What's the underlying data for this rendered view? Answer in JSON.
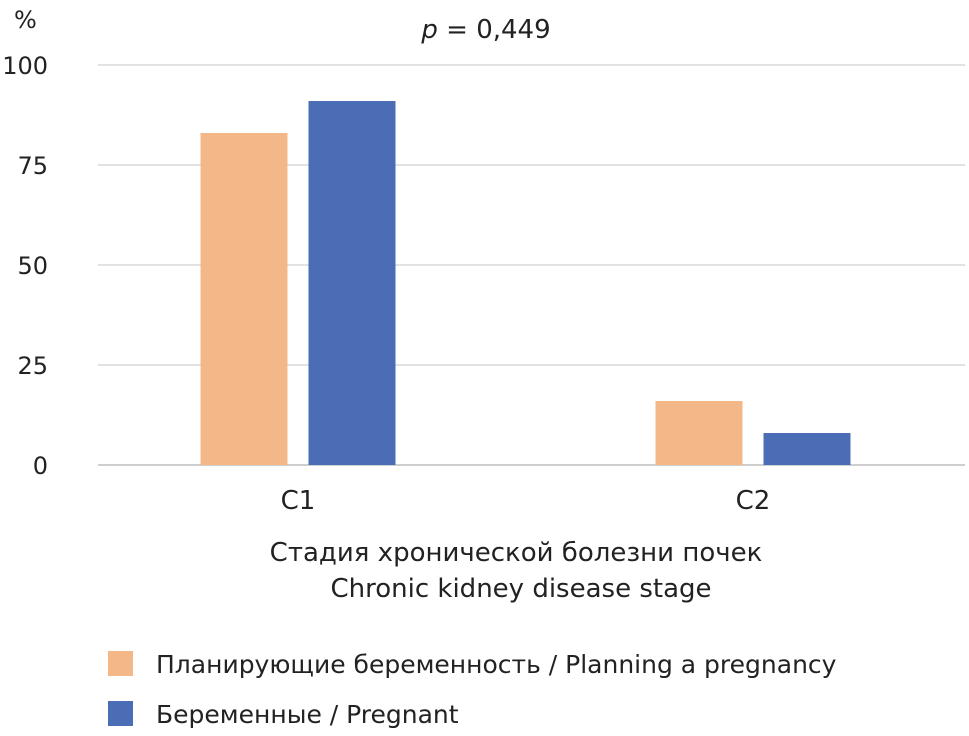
{
  "chart_data": {
    "type": "bar",
    "title": "p = 0,449",
    "title_p": "p",
    "title_rest": " = 0,449",
    "ylabel": "%",
    "xlabel_lines": [
      "Стадия хронической болезни почек",
      "Chronic kidney disease stage"
    ],
    "categories": [
      "C1",
      "C2"
    ],
    "ylim": [
      0,
      100
    ],
    "yticks": [
      0,
      25,
      50,
      75,
      100
    ],
    "grid": true,
    "legend_position": "bottom-left",
    "series": [
      {
        "name": "Планирующие беременность / Planning a pregnancy",
        "color": "#F4B787",
        "values": [
          83,
          16
        ]
      },
      {
        "name": "Беременные / Pregnant",
        "color": "#4A6DB5",
        "values": [
          91,
          8
        ]
      }
    ]
  }
}
